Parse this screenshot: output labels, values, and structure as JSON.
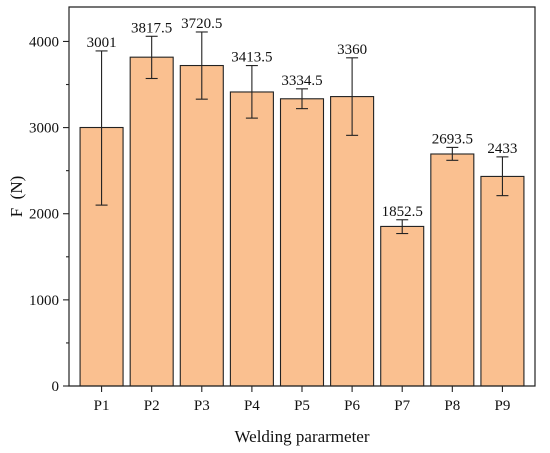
{
  "chart_data": {
    "type": "bar",
    "categories": [
      "P1",
      "P2",
      "P3",
      "P4",
      "P5",
      "P6",
      "P7",
      "P8",
      "P9"
    ],
    "values": [
      3001,
      3817.5,
      3720.5,
      3413.5,
      3334.5,
      3360,
      1852.5,
      2693.5,
      2433
    ],
    "value_labels": [
      "3001",
      "3817.5",
      "3720.5",
      "3413.5",
      "3334.5",
      "3360",
      "1852.5",
      "2693.5",
      "2433"
    ],
    "error_bars": [
      {
        "low": 2100,
        "high": 3890
      },
      {
        "low": 3570,
        "high": 4060
      },
      {
        "low": 3330,
        "high": 4110
      },
      {
        "low": 3110,
        "high": 3720
      },
      {
        "low": 3220,
        "high": 3450
      },
      {
        "low": 2910,
        "high": 3810
      },
      {
        "low": 1770,
        "high": 1930
      },
      {
        "low": 2620,
        "high": 2770
      },
      {
        "low": 2210,
        "high": 2660
      }
    ],
    "title": "",
    "xlabel": "Welding pararmeter",
    "ylabel": "F  (N)",
    "ylim": [
      0,
      4400
    ],
    "yticks": [
      0,
      1000,
      2000,
      3000,
      4000
    ],
    "ytick_labels": [
      "0",
      "1000",
      "2000",
      "3000",
      "4000"
    ],
    "grid": false,
    "legend": "none",
    "colors": {
      "bar_fill": "#FAC090",
      "bar_edge": "#222222",
      "axis": "#222222",
      "text": "#111111"
    }
  }
}
